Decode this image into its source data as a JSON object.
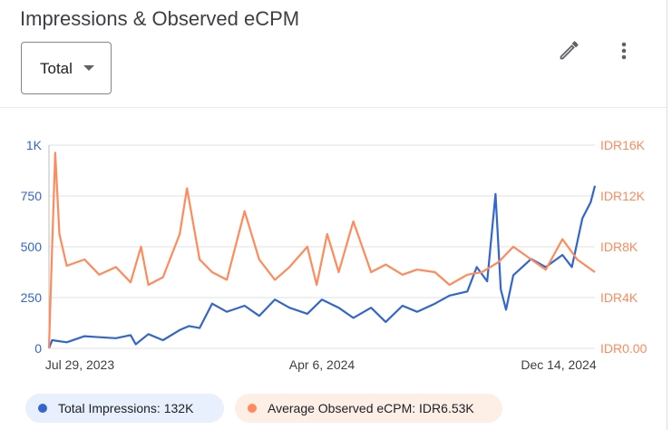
{
  "card": {
    "title": "Impressions & Observed eCPM",
    "dropdown_value": "Total"
  },
  "icons": {
    "edit": "pencil-icon",
    "more": "more-vert-icon"
  },
  "legend": [
    {
      "label": "Total Impressions: 132K",
      "color": "#3366cc"
    },
    {
      "label": "Average Observed eCPM: IDR6.53K",
      "color": "#ff8a5b"
    }
  ],
  "chart_data": {
    "type": "line",
    "x_ticks": [
      "Jul 29, 2023",
      "Apr 6, 2024",
      "Dec 14, 2024"
    ],
    "y_left_ticks": [
      "0",
      "250",
      "500",
      "750",
      "1K"
    ],
    "y_right_ticks": [
      "IDR0.00",
      "IDR4K",
      "IDR8K",
      "IDR12K",
      "IDR16K"
    ],
    "y_left_range": [
      0,
      1000
    ],
    "y_right_range": [
      0,
      16000
    ],
    "x_range": [
      "2023-07-29",
      "2025-01-01"
    ],
    "grid": true,
    "series": [
      {
        "name": "Total Impressions",
        "axis": "left",
        "color": "#3366cc",
        "points": [
          [
            "2023-07-29",
            0
          ],
          [
            "2023-08-01",
            40
          ],
          [
            "2023-08-15",
            30
          ],
          [
            "2023-09-01",
            60
          ],
          [
            "2023-09-15",
            55
          ],
          [
            "2023-10-01",
            50
          ],
          [
            "2023-10-15",
            65
          ],
          [
            "2023-10-20",
            20
          ],
          [
            "2023-11-01",
            70
          ],
          [
            "2023-11-15",
            40
          ],
          [
            "2023-12-01",
            90
          ],
          [
            "2023-12-10",
            110
          ],
          [
            "2023-12-20",
            100
          ],
          [
            "2024-01-01",
            220
          ],
          [
            "2024-01-15",
            180
          ],
          [
            "2024-02-01",
            210
          ],
          [
            "2024-02-15",
            160
          ],
          [
            "2024-03-01",
            240
          ],
          [
            "2024-03-15",
            200
          ],
          [
            "2024-04-01",
            170
          ],
          [
            "2024-04-15",
            240
          ],
          [
            "2024-05-01",
            200
          ],
          [
            "2024-05-15",
            150
          ],
          [
            "2024-06-01",
            200
          ],
          [
            "2024-06-15",
            130
          ],
          [
            "2024-07-01",
            210
          ],
          [
            "2024-07-15",
            180
          ],
          [
            "2024-08-01",
            220
          ],
          [
            "2024-08-15",
            260
          ],
          [
            "2024-09-01",
            280
          ],
          [
            "2024-09-10",
            400
          ],
          [
            "2024-09-20",
            330
          ],
          [
            "2024-09-28",
            760
          ],
          [
            "2024-10-03",
            290
          ],
          [
            "2024-10-08",
            190
          ],
          [
            "2024-10-15",
            360
          ],
          [
            "2024-11-01",
            440
          ],
          [
            "2024-11-15",
            400
          ],
          [
            "2024-12-01",
            460
          ],
          [
            "2024-12-10",
            400
          ],
          [
            "2024-12-20",
            640
          ],
          [
            "2024-12-28",
            720
          ],
          [
            "2025-01-01",
            800
          ]
        ]
      },
      {
        "name": "Average Observed eCPM",
        "axis": "right",
        "color": "#ff8a5b",
        "points": [
          [
            "2023-07-29",
            0
          ],
          [
            "2023-08-01",
            8000
          ],
          [
            "2023-08-04",
            15400
          ],
          [
            "2023-08-08",
            9000
          ],
          [
            "2023-08-15",
            6500
          ],
          [
            "2023-09-01",
            7000
          ],
          [
            "2023-09-15",
            5800
          ],
          [
            "2023-10-01",
            6400
          ],
          [
            "2023-10-15",
            5200
          ],
          [
            "2023-10-25",
            8000
          ],
          [
            "2023-11-01",
            5000
          ],
          [
            "2023-11-15",
            5600
          ],
          [
            "2023-12-01",
            9000
          ],
          [
            "2023-12-08",
            12600
          ],
          [
            "2023-12-20",
            7000
          ],
          [
            "2024-01-01",
            6000
          ],
          [
            "2024-01-15",
            5400
          ],
          [
            "2024-02-01",
            10800
          ],
          [
            "2024-02-15",
            7000
          ],
          [
            "2024-03-01",
            5400
          ],
          [
            "2024-03-15",
            6400
          ],
          [
            "2024-04-01",
            8000
          ],
          [
            "2024-04-10",
            5000
          ],
          [
            "2024-04-20",
            9000
          ],
          [
            "2024-05-01",
            6000
          ],
          [
            "2024-05-15",
            10000
          ],
          [
            "2024-06-01",
            6000
          ],
          [
            "2024-06-15",
            6600
          ],
          [
            "2024-07-01",
            5800
          ],
          [
            "2024-07-15",
            6200
          ],
          [
            "2024-08-01",
            6000
          ],
          [
            "2024-08-15",
            5000
          ],
          [
            "2024-09-01",
            5800
          ],
          [
            "2024-09-15",
            6000
          ],
          [
            "2024-10-01",
            6800
          ],
          [
            "2024-10-15",
            8000
          ],
          [
            "2024-11-01",
            7000
          ],
          [
            "2024-11-15",
            6200
          ],
          [
            "2024-12-01",
            8600
          ],
          [
            "2024-12-15",
            7000
          ],
          [
            "2025-01-01",
            6000
          ]
        ]
      }
    ]
  }
}
